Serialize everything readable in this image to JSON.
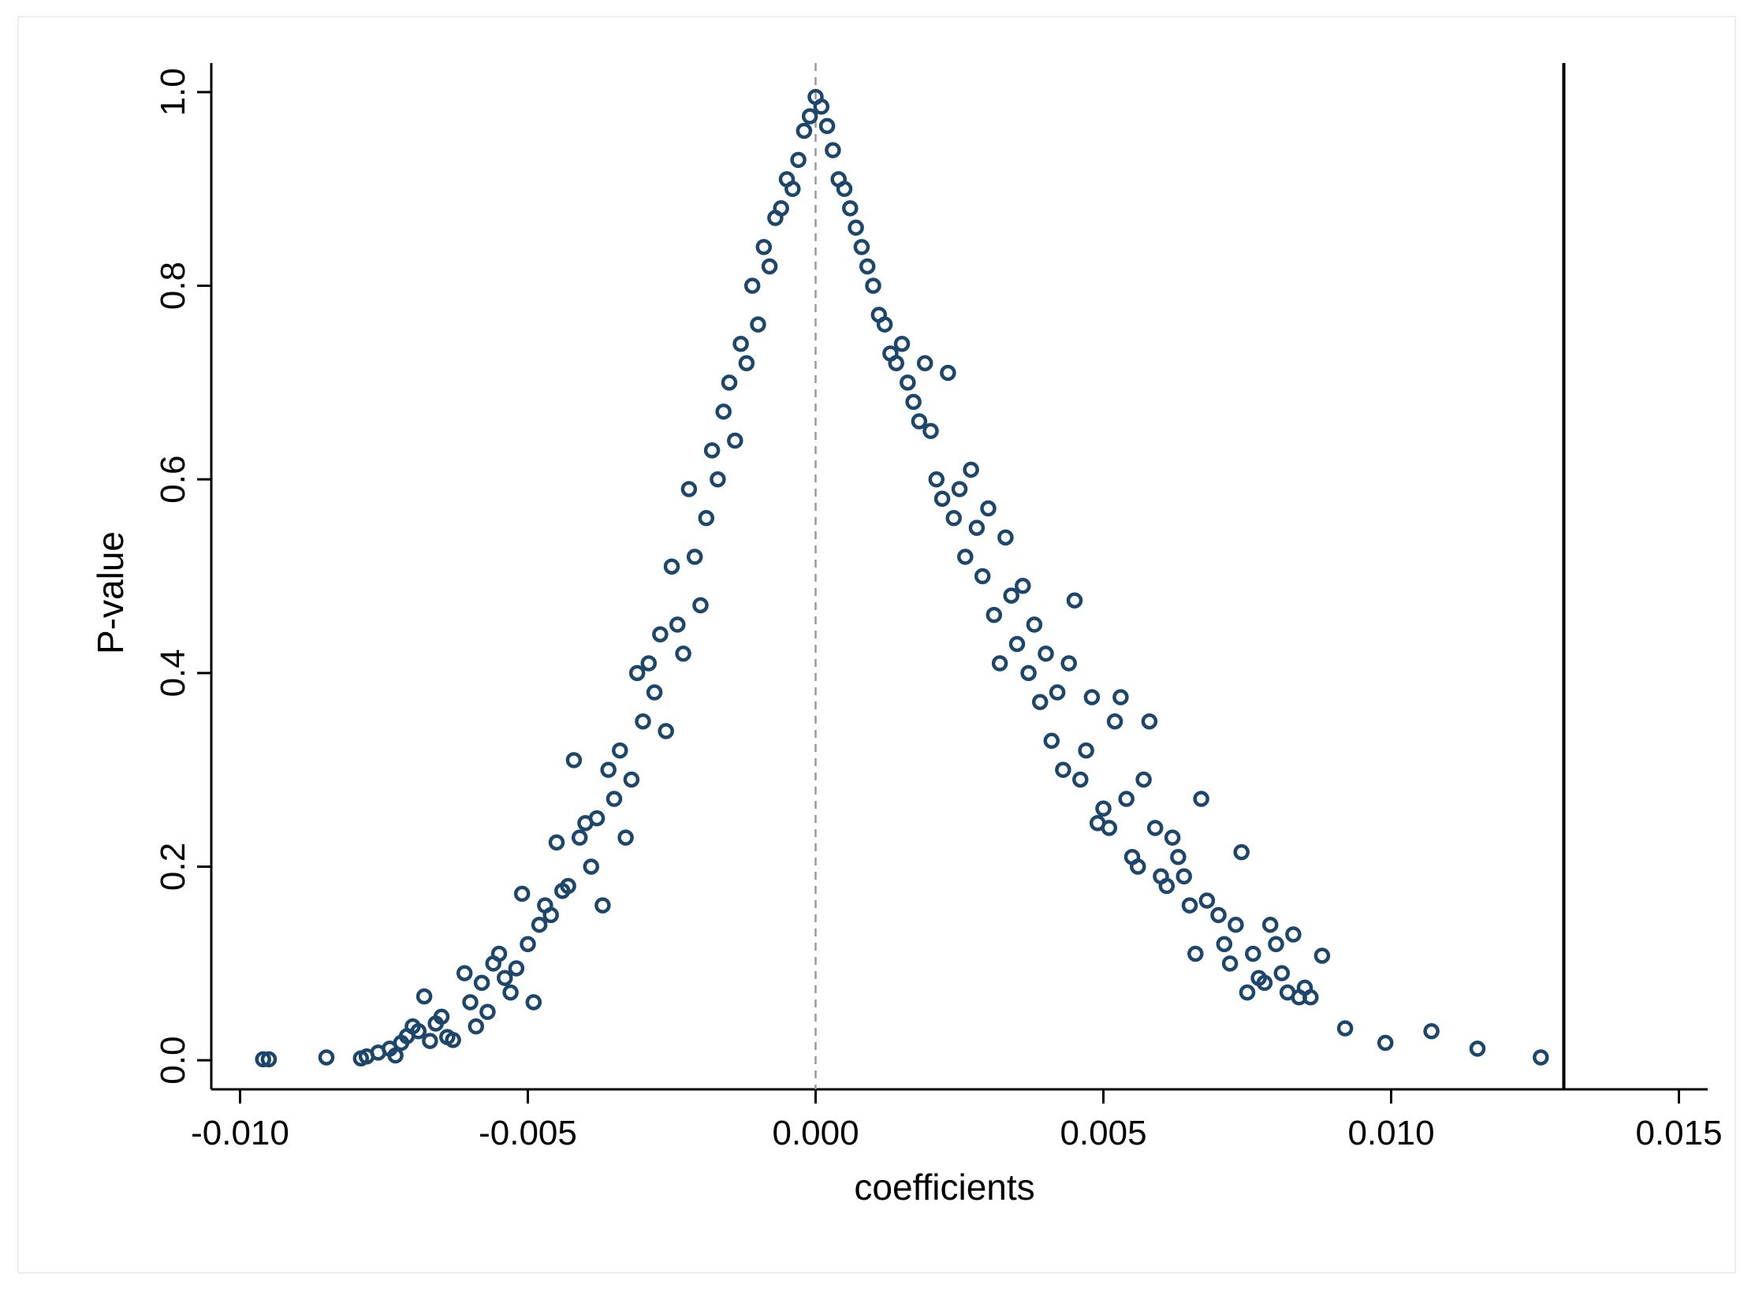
{
  "chart_data": {
    "type": "scatter",
    "title": "",
    "xlabel": "coefficients",
    "ylabel": "P-value",
    "xlim": [
      -0.0105,
      0.0155
    ],
    "ylim": [
      -0.03,
      1.03
    ],
    "x_ticks": [
      -0.01,
      -0.005,
      0.0,
      0.005,
      0.01,
      0.015
    ],
    "x_tick_labels": [
      "-0.010",
      "-0.005",
      "0.000",
      "0.005",
      "0.010",
      "0.015"
    ],
    "y_ticks": [
      0.0,
      0.2,
      0.4,
      0.6,
      0.8,
      1.0
    ],
    "y_tick_labels": [
      "0.0",
      "0.2",
      "0.4",
      "0.6",
      "0.8",
      "1.0"
    ],
    "grid": false,
    "legend": "none",
    "reference_lines": [
      {
        "axis": "x",
        "value": 0.0,
        "style": "dashed",
        "color": "#999999"
      },
      {
        "axis": "x",
        "value": 0.013,
        "style": "solid",
        "color": "#000000"
      }
    ],
    "marker": {
      "shape": "hollow-circle",
      "color": "#1c466b"
    },
    "series": [
      {
        "points": [
          [
            -0.0096,
            0.001
          ],
          [
            -0.0095,
            0.001
          ],
          [
            -0.0085,
            0.003
          ],
          [
            -0.0079,
            0.002
          ],
          [
            -0.0078,
            0.004
          ],
          [
            -0.0076,
            0.008
          ],
          [
            -0.0074,
            0.012
          ],
          [
            -0.0073,
            0.005
          ],
          [
            -0.0072,
            0.018
          ],
          [
            -0.0071,
            0.025
          ],
          [
            -0.007,
            0.035
          ],
          [
            -0.0069,
            0.03
          ],
          [
            -0.0068,
            0.066
          ],
          [
            -0.0067,
            0.02
          ],
          [
            -0.0066,
            0.038
          ],
          [
            -0.0065,
            0.045
          ],
          [
            -0.0064,
            0.024
          ],
          [
            -0.0063,
            0.021
          ],
          [
            -0.0061,
            0.09
          ],
          [
            -0.006,
            0.06
          ],
          [
            -0.0059,
            0.035
          ],
          [
            -0.0058,
            0.08
          ],
          [
            -0.0057,
            0.05
          ],
          [
            -0.0056,
            0.1
          ],
          [
            -0.0055,
            0.11
          ],
          [
            -0.0054,
            0.085
          ],
          [
            -0.0053,
            0.07
          ],
          [
            -0.0052,
            0.095
          ],
          [
            -0.0051,
            0.172
          ],
          [
            -0.005,
            0.12
          ],
          [
            -0.0049,
            0.06
          ],
          [
            -0.0048,
            0.14
          ],
          [
            -0.0047,
            0.16
          ],
          [
            -0.0046,
            0.15
          ],
          [
            -0.0045,
            0.225
          ],
          [
            -0.0044,
            0.175
          ],
          [
            -0.0043,
            0.18
          ],
          [
            -0.0042,
            0.31
          ],
          [
            -0.0041,
            0.23
          ],
          [
            -0.004,
            0.245
          ],
          [
            -0.0039,
            0.2
          ],
          [
            -0.0038,
            0.25
          ],
          [
            -0.0037,
            0.16
          ],
          [
            -0.0036,
            0.3
          ],
          [
            -0.0035,
            0.27
          ],
          [
            -0.0034,
            0.32
          ],
          [
            -0.0033,
            0.23
          ],
          [
            -0.0032,
            0.29
          ],
          [
            -0.0031,
            0.4
          ],
          [
            -0.003,
            0.35
          ],
          [
            -0.0029,
            0.41
          ],
          [
            -0.0028,
            0.38
          ],
          [
            -0.0027,
            0.44
          ],
          [
            -0.0026,
            0.34
          ],
          [
            -0.0025,
            0.51
          ],
          [
            -0.0024,
            0.45
          ],
          [
            -0.0023,
            0.42
          ],
          [
            -0.0022,
            0.59
          ],
          [
            -0.0021,
            0.52
          ],
          [
            -0.002,
            0.47
          ],
          [
            -0.0019,
            0.56
          ],
          [
            -0.0018,
            0.63
          ],
          [
            -0.0017,
            0.6
          ],
          [
            -0.0016,
            0.67
          ],
          [
            -0.0015,
            0.7
          ],
          [
            -0.0014,
            0.64
          ],
          [
            -0.0013,
            0.74
          ],
          [
            -0.0012,
            0.72
          ],
          [
            -0.0011,
            0.8
          ],
          [
            -0.001,
            0.76
          ],
          [
            -0.0009,
            0.84
          ],
          [
            -0.0008,
            0.82
          ],
          [
            -0.0007,
            0.87
          ],
          [
            -0.0006,
            0.88
          ],
          [
            -0.0005,
            0.91
          ],
          [
            -0.0004,
            0.9
          ],
          [
            -0.0003,
            0.93
          ],
          [
            -0.0002,
            0.96
          ],
          [
            -0.0001,
            0.975
          ],
          [
            0.0,
            0.995
          ],
          [
            0.0001,
            0.985
          ],
          [
            0.0002,
            0.965
          ],
          [
            0.0003,
            0.94
          ],
          [
            0.0004,
            0.91
          ],
          [
            0.0005,
            0.9
          ],
          [
            0.0006,
            0.88
          ],
          [
            0.0007,
            0.86
          ],
          [
            0.0008,
            0.84
          ],
          [
            0.0009,
            0.82
          ],
          [
            0.001,
            0.8
          ],
          [
            0.0011,
            0.77
          ],
          [
            0.0012,
            0.76
          ],
          [
            0.0013,
            0.73
          ],
          [
            0.0014,
            0.72
          ],
          [
            0.0015,
            0.74
          ],
          [
            0.0016,
            0.7
          ],
          [
            0.0017,
            0.68
          ],
          [
            0.0018,
            0.66
          ],
          [
            0.0019,
            0.72
          ],
          [
            0.002,
            0.65
          ],
          [
            0.0021,
            0.6
          ],
          [
            0.0022,
            0.58
          ],
          [
            0.0023,
            0.71
          ],
          [
            0.0024,
            0.56
          ],
          [
            0.0025,
            0.59
          ],
          [
            0.0026,
            0.52
          ],
          [
            0.0027,
            0.61
          ],
          [
            0.0028,
            0.55
          ],
          [
            0.0029,
            0.5
          ],
          [
            0.003,
            0.57
          ],
          [
            0.0031,
            0.46
          ],
          [
            0.0032,
            0.41
          ],
          [
            0.0033,
            0.54
          ],
          [
            0.0034,
            0.48
          ],
          [
            0.0035,
            0.43
          ],
          [
            0.0036,
            0.49
          ],
          [
            0.0037,
            0.4
          ],
          [
            0.0038,
            0.45
          ],
          [
            0.0039,
            0.37
          ],
          [
            0.004,
            0.42
          ],
          [
            0.0041,
            0.33
          ],
          [
            0.0042,
            0.38
          ],
          [
            0.0043,
            0.3
          ],
          [
            0.0044,
            0.41
          ],
          [
            0.0045,
            0.475
          ],
          [
            0.0046,
            0.29
          ],
          [
            0.0047,
            0.32
          ],
          [
            0.0048,
            0.375
          ],
          [
            0.0049,
            0.245
          ],
          [
            0.005,
            0.26
          ],
          [
            0.0051,
            0.24
          ],
          [
            0.0052,
            0.35
          ],
          [
            0.0053,
            0.375
          ],
          [
            0.0054,
            0.27
          ],
          [
            0.0055,
            0.21
          ],
          [
            0.0056,
            0.2
          ],
          [
            0.0057,
            0.29
          ],
          [
            0.0058,
            0.35
          ],
          [
            0.0059,
            0.24
          ],
          [
            0.006,
            0.19
          ],
          [
            0.0061,
            0.18
          ],
          [
            0.0062,
            0.23
          ],
          [
            0.0063,
            0.21
          ],
          [
            0.0064,
            0.19
          ],
          [
            0.0065,
            0.16
          ],
          [
            0.0066,
            0.11
          ],
          [
            0.0067,
            0.27
          ],
          [
            0.0068,
            0.165
          ],
          [
            0.007,
            0.15
          ],
          [
            0.0071,
            0.12
          ],
          [
            0.0072,
            0.1
          ],
          [
            0.0073,
            0.14
          ],
          [
            0.0074,
            0.215
          ],
          [
            0.0075,
            0.07
          ],
          [
            0.0076,
            0.11
          ],
          [
            0.0077,
            0.085
          ],
          [
            0.0078,
            0.08
          ],
          [
            0.0079,
            0.14
          ],
          [
            0.008,
            0.12
          ],
          [
            0.0081,
            0.09
          ],
          [
            0.0082,
            0.07
          ],
          [
            0.0083,
            0.13
          ],
          [
            0.0084,
            0.065
          ],
          [
            0.0085,
            0.075
          ],
          [
            0.0086,
            0.065
          ],
          [
            0.0088,
            0.108
          ],
          [
            0.0092,
            0.033
          ],
          [
            0.0099,
            0.018
          ],
          [
            0.0107,
            0.03
          ],
          [
            0.0115,
            0.012
          ],
          [
            0.0126,
            0.003
          ]
        ]
      }
    ]
  }
}
